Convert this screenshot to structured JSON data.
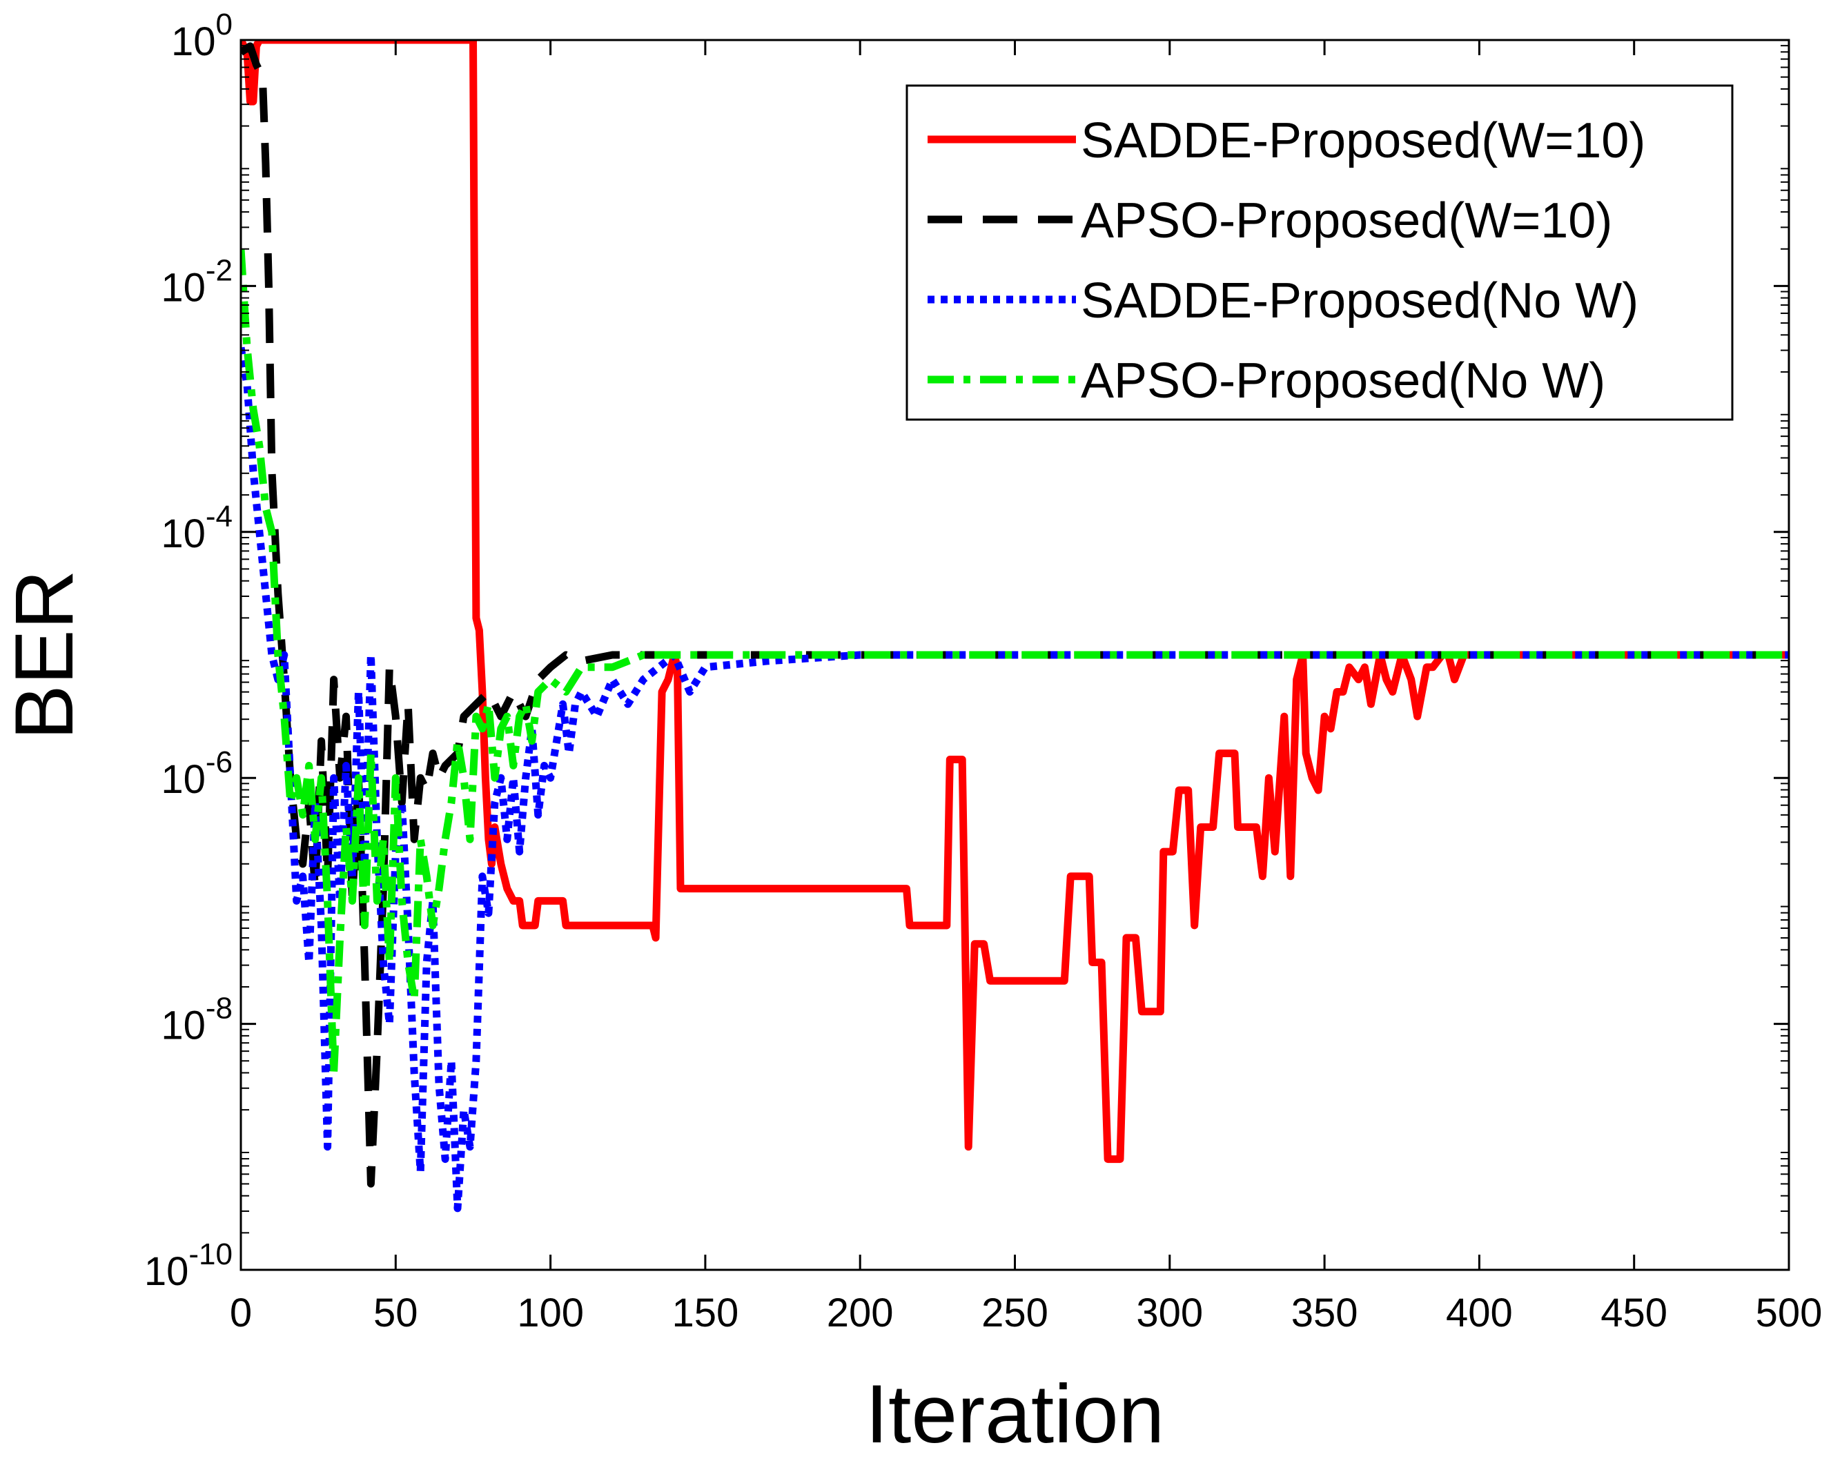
{
  "chart_data": {
    "type": "line",
    "title": "",
    "xlabel": "Iteration",
    "ylabel": "BER",
    "xlim": [
      0,
      500
    ],
    "ylim_log10": [
      -10,
      0
    ],
    "y_scale": "log",
    "grid": false,
    "legend_position": "top-right",
    "x_ticks": [
      "0",
      "50",
      "100",
      "150",
      "200",
      "250",
      "300",
      "350",
      "400",
      "450",
      "500"
    ],
    "y_ticks": [
      {
        "base": "10",
        "exp": "0"
      },
      {
        "base": "10",
        "exp": "-2"
      },
      {
        "base": "10",
        "exp": "-4"
      },
      {
        "base": "10",
        "exp": "-6"
      },
      {
        "base": "10",
        "exp": "-8"
      },
      {
        "base": "10",
        "exp": "-10"
      }
    ],
    "series": [
      {
        "name": "SADDE-Proposed(W=10)",
        "color": "#ff0000",
        "style": "solid",
        "points_log10": [
          [
            0,
            0
          ],
          [
            2,
            -0.1
          ],
          [
            3,
            -0.5
          ],
          [
            4,
            -0.5
          ],
          [
            5,
            -0.05
          ],
          [
            6,
            0
          ],
          [
            30,
            0
          ],
          [
            60,
            0
          ],
          [
            74,
            0
          ],
          [
            75,
            0
          ],
          [
            76,
            -4.7
          ],
          [
            77,
            -4.8
          ],
          [
            78,
            -5.3
          ],
          [
            79,
            -6
          ],
          [
            80,
            -6.5
          ],
          [
            81,
            -6.7
          ],
          [
            82,
            -6.4
          ],
          [
            84,
            -6.7
          ],
          [
            86,
            -6.9
          ],
          [
            88,
            -7.0
          ],
          [
            90,
            -7.0
          ],
          [
            91,
            -7.2
          ],
          [
            95,
            -7.2
          ],
          [
            96,
            -7.0
          ],
          [
            100,
            -7.0
          ],
          [
            104,
            -7.0
          ],
          [
            105,
            -7.2
          ],
          [
            110,
            -7.2
          ],
          [
            120,
            -7.2
          ],
          [
            133,
            -7.2
          ],
          [
            134,
            -7.3
          ],
          [
            136,
            -5.3
          ],
          [
            138,
            -5.2
          ],
          [
            140,
            -5.0
          ],
          [
            141,
            -5.1
          ],
          [
            142,
            -6.9
          ],
          [
            150,
            -6.9
          ],
          [
            200,
            -6.9
          ],
          [
            215,
            -6.9
          ],
          [
            216,
            -7.2
          ],
          [
            228,
            -7.2
          ],
          [
            229,
            -5.85
          ],
          [
            233,
            -5.85
          ],
          [
            235,
            -9.0
          ],
          [
            237,
            -7.35
          ],
          [
            240,
            -7.35
          ],
          [
            242,
            -7.65
          ],
          [
            265,
            -7.65
          ],
          [
            266,
            -7.65
          ],
          [
            268,
            -6.8
          ],
          [
            274,
            -6.8
          ],
          [
            275,
            -7.5
          ],
          [
            278,
            -7.5
          ],
          [
            280,
            -9.1
          ],
          [
            284,
            -9.1
          ],
          [
            286,
            -7.3
          ],
          [
            289,
            -7.3
          ],
          [
            291,
            -7.9
          ],
          [
            297,
            -7.9
          ],
          [
            298,
            -6.6
          ],
          [
            301,
            -6.6
          ],
          [
            303,
            -6.1
          ],
          [
            306,
            -6.1
          ],
          [
            308,
            -7.2
          ],
          [
            310,
            -6.4
          ],
          [
            314,
            -6.4
          ],
          [
            316,
            -5.8
          ],
          [
            321,
            -5.8
          ],
          [
            322,
            -6.4
          ],
          [
            326,
            -6.4
          ],
          [
            328,
            -6.4
          ],
          [
            330,
            -6.8
          ],
          [
            332,
            -6.0
          ],
          [
            334,
            -6.6
          ],
          [
            337,
            -5.5
          ],
          [
            339,
            -6.8
          ],
          [
            341,
            -5.2
          ],
          [
            343,
            -5.0
          ],
          [
            344,
            -5.8
          ],
          [
            346,
            -6.0
          ],
          [
            348,
            -6.1
          ],
          [
            350,
            -5.5
          ],
          [
            352,
            -5.6
          ],
          [
            354,
            -5.3
          ],
          [
            356,
            -5.3
          ],
          [
            358,
            -5.1
          ],
          [
            361,
            -5.2
          ],
          [
            363,
            -5.1
          ],
          [
            365,
            -5.4
          ],
          [
            368,
            -5.0
          ],
          [
            370,
            -5.2
          ],
          [
            372,
            -5.3
          ],
          [
            375,
            -5.0
          ],
          [
            378,
            -5.2
          ],
          [
            380,
            -5.5
          ],
          [
            383,
            -5.1
          ],
          [
            385,
            -5.1
          ],
          [
            388,
            -5.0
          ],
          [
            390,
            -5.0
          ],
          [
            392,
            -5.2
          ],
          [
            395,
            -5.0
          ],
          [
            398,
            -5.0
          ],
          [
            400,
            -5.0
          ],
          [
            420,
            -5.0
          ],
          [
            450,
            -5.0
          ],
          [
            500,
            -5.0
          ]
        ]
      },
      {
        "name": "APSO-Proposed(W=10)",
        "color": "#000000",
        "style": "dashed",
        "points_log10": [
          [
            0,
            -0.1
          ],
          [
            3,
            -0.05
          ],
          [
            5,
            -0.2
          ],
          [
            7,
            -0.3
          ],
          [
            8,
            -1.0
          ],
          [
            9,
            -2.0
          ],
          [
            10,
            -3.5
          ],
          [
            12,
            -4.5
          ],
          [
            14,
            -5.2
          ],
          [
            16,
            -6.0
          ],
          [
            18,
            -6.5
          ],
          [
            20,
            -6.7
          ],
          [
            22,
            -6.2
          ],
          [
            24,
            -6.9
          ],
          [
            26,
            -5.7
          ],
          [
            28,
            -6.8
          ],
          [
            30,
            -5.2
          ],
          [
            32,
            -6.0
          ],
          [
            34,
            -5.5
          ],
          [
            36,
            -7.0
          ],
          [
            38,
            -6.0
          ],
          [
            40,
            -7.5
          ],
          [
            42,
            -9.3
          ],
          [
            44,
            -8.2
          ],
          [
            46,
            -6.9
          ],
          [
            48,
            -5.1
          ],
          [
            50,
            -5.5
          ],
          [
            52,
            -6.2
          ],
          [
            54,
            -5.4
          ],
          [
            56,
            -6.5
          ],
          [
            58,
            -6.0
          ],
          [
            60,
            -6.1
          ],
          [
            62,
            -5.8
          ],
          [
            64,
            -6.0
          ],
          [
            66,
            -5.9
          ],
          [
            70,
            -5.8
          ],
          [
            72,
            -5.5
          ],
          [
            76,
            -5.4
          ],
          [
            80,
            -5.3
          ],
          [
            84,
            -5.5
          ],
          [
            88,
            -5.3
          ],
          [
            92,
            -5.5
          ],
          [
            96,
            -5.2
          ],
          [
            100,
            -5.1
          ],
          [
            105,
            -5.0
          ],
          [
            110,
            -5.05
          ],
          [
            120,
            -5.0
          ],
          [
            140,
            -5.0
          ],
          [
            200,
            -5.0
          ],
          [
            300,
            -5.0
          ],
          [
            400,
            -5.0
          ],
          [
            500,
            -5.0
          ]
        ]
      },
      {
        "name": "SADDE-Proposed(No W)",
        "color": "#0000ff",
        "style": "dotted",
        "points_log10": [
          [
            0,
            -2.5
          ],
          [
            2,
            -2.8
          ],
          [
            4,
            -3.5
          ],
          [
            6,
            -4.0
          ],
          [
            8,
            -4.5
          ],
          [
            10,
            -5.0
          ],
          [
            12,
            -5.2
          ],
          [
            14,
            -5.0
          ],
          [
            16,
            -6.0
          ],
          [
            18,
            -7.0
          ],
          [
            20,
            -6.8
          ],
          [
            22,
            -7.5
          ],
          [
            24,
            -6.2
          ],
          [
            26,
            -7.2
          ],
          [
            28,
            -9.0
          ],
          [
            30,
            -6.0
          ],
          [
            32,
            -7.0
          ],
          [
            34,
            -5.9
          ],
          [
            36,
            -6.8
          ],
          [
            38,
            -5.3
          ],
          [
            40,
            -6.7
          ],
          [
            42,
            -5.0
          ],
          [
            44,
            -6.5
          ],
          [
            46,
            -7.5
          ],
          [
            48,
            -8.0
          ],
          [
            50,
            -6.6
          ],
          [
            52,
            -6.2
          ],
          [
            54,
            -7.2
          ],
          [
            56,
            -8.4
          ],
          [
            58,
            -9.2
          ],
          [
            60,
            -7.5
          ],
          [
            62,
            -7.0
          ],
          [
            64,
            -8.5
          ],
          [
            66,
            -9.1
          ],
          [
            68,
            -8.3
          ],
          [
            70,
            -9.5
          ],
          [
            72,
            -8.7
          ],
          [
            74,
            -9.0
          ],
          [
            76,
            -8.3
          ],
          [
            78,
            -6.8
          ],
          [
            80,
            -7.1
          ],
          [
            82,
            -6.2
          ],
          [
            84,
            -6.0
          ],
          [
            86,
            -6.5
          ],
          [
            88,
            -6.0
          ],
          [
            90,
            -6.6
          ],
          [
            92,
            -6.0
          ],
          [
            94,
            -5.6
          ],
          [
            96,
            -6.3
          ],
          [
            98,
            -5.9
          ],
          [
            100,
            -6.0
          ],
          [
            102,
            -5.7
          ],
          [
            104,
            -5.4
          ],
          [
            106,
            -5.8
          ],
          [
            108,
            -5.4
          ],
          [
            110,
            -5.3
          ],
          [
            115,
            -5.5
          ],
          [
            120,
            -5.2
          ],
          [
            125,
            -5.4
          ],
          [
            130,
            -5.2
          ],
          [
            135,
            -5.1
          ],
          [
            140,
            -5.0
          ],
          [
            145,
            -5.3
          ],
          [
            150,
            -5.1
          ],
          [
            170,
            -5.05
          ],
          [
            200,
            -5.0
          ],
          [
            300,
            -5.0
          ],
          [
            400,
            -5.0
          ],
          [
            500,
            -5.0
          ]
        ]
      },
      {
        "name": "APSO-Proposed(No W)",
        "color": "#00ee00",
        "style": "dash-dot",
        "points_log10": [
          [
            0,
            -1.7
          ],
          [
            2,
            -2.5
          ],
          [
            4,
            -3.0
          ],
          [
            6,
            -3.3
          ],
          [
            8,
            -3.8
          ],
          [
            10,
            -4.0
          ],
          [
            12,
            -5.0
          ],
          [
            14,
            -5.5
          ],
          [
            16,
            -6.2
          ],
          [
            18,
            -6.0
          ],
          [
            20,
            -6.3
          ],
          [
            22,
            -5.9
          ],
          [
            24,
            -6.5
          ],
          [
            26,
            -6.0
          ],
          [
            28,
            -7.0
          ],
          [
            30,
            -8.4
          ],
          [
            32,
            -7.3
          ],
          [
            34,
            -6.4
          ],
          [
            36,
            -7.0
          ],
          [
            38,
            -6.0
          ],
          [
            40,
            -7.2
          ],
          [
            42,
            -5.8
          ],
          [
            44,
            -7.0
          ],
          [
            46,
            -6.5
          ],
          [
            48,
            -7.5
          ],
          [
            50,
            -6.0
          ],
          [
            52,
            -7.0
          ],
          [
            54,
            -7.5
          ],
          [
            56,
            -7.8
          ],
          [
            58,
            -6.5
          ],
          [
            60,
            -6.8
          ],
          [
            62,
            -7.2
          ],
          [
            64,
            -6.9
          ],
          [
            66,
            -6.5
          ],
          [
            68,
            -6.2
          ],
          [
            70,
            -5.7
          ],
          [
            72,
            -6.0
          ],
          [
            74,
            -6.5
          ],
          [
            76,
            -5.5
          ],
          [
            78,
            -5.6
          ],
          [
            80,
            -5.4
          ],
          [
            82,
            -6.0
          ],
          [
            84,
            -5.6
          ],
          [
            86,
            -5.5
          ],
          [
            88,
            -5.9
          ],
          [
            90,
            -5.5
          ],
          [
            92,
            -5.4
          ],
          [
            94,
            -5.7
          ],
          [
            96,
            -5.3
          ],
          [
            100,
            -5.2
          ],
          [
            105,
            -5.3
          ],
          [
            110,
            -5.1
          ],
          [
            120,
            -5.1
          ],
          [
            130,
            -5.0
          ],
          [
            140,
            -5.0
          ],
          [
            200,
            -5.0
          ],
          [
            300,
            -5.0
          ],
          [
            400,
            -5.0
          ],
          [
            500,
            -5.0
          ]
        ]
      }
    ]
  }
}
